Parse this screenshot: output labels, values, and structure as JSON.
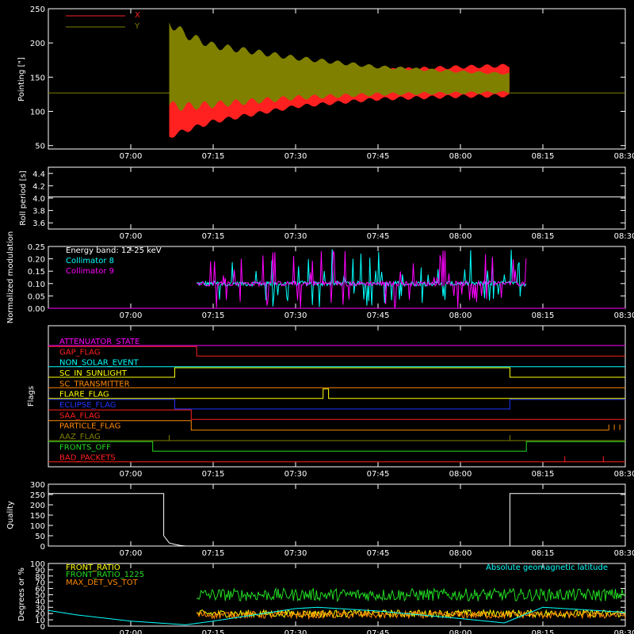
{
  "colors": {
    "background": "#000000",
    "axes": "#ffffff",
    "red": "#ff2020",
    "olive": "#808000",
    "cyan": "#00ffff",
    "magenta": "#ff00ff",
    "white": "#ffffff",
    "green": "#22dd22",
    "orange": "#ff8800",
    "yellow": "#ffff00",
    "blue": "#2233ff",
    "purple": "#aa33ff"
  },
  "chart_data": [
    {
      "id": "pointing",
      "type": "line",
      "ylabel": "Pointing [\"]",
      "xlim": [
        "06:45",
        "08:30"
      ],
      "xticks": [
        "07:00",
        "07:15",
        "07:30",
        "07:45",
        "08:00",
        "08:15",
        "08:30"
      ],
      "ylim": [
        45,
        250
      ],
      "yticks": [
        50,
        100,
        150,
        200,
        250
      ],
      "legend_position": "top-left",
      "baseline": 127,
      "active_window": [
        "07:07",
        "08:09"
      ],
      "series": [
        {
          "name": "X",
          "color": "#ff2020",
          "envelope": {
            "time": [
              "07:07",
              "07:10",
              "07:15",
              "07:30",
              "07:45",
              "08:00",
              "08:09"
            ],
            "min": [
              63,
              72,
              85,
              107,
              118,
              122,
              123
            ],
            "max": [
              120,
              132,
              138,
              150,
              160,
              165,
              167
            ]
          }
        },
        {
          "name": "Y",
          "color": "#808000",
          "envelope": {
            "time": [
              "07:07",
              "07:10",
              "07:15",
              "07:30",
              "07:45",
              "08:00",
              "08:09"
            ],
            "min": [
              108,
              107,
              110,
              120,
              125,
              127,
              128
            ],
            "max": [
              230,
              212,
              196,
              178,
              165,
              158,
              155
            ]
          }
        }
      ]
    },
    {
      "id": "roll",
      "type": "line",
      "ylabel": "Roll period [s]",
      "xlim": [
        "06:45",
        "08:30"
      ],
      "xticks": [
        "07:00",
        "07:15",
        "07:30",
        "07:45",
        "08:00",
        "08:15",
        "08:30"
      ],
      "ylim": [
        3.5,
        4.5
      ],
      "yticks": [
        "3.6",
        "3.8",
        "4.0",
        "4.2",
        "4.4"
      ],
      "series": [
        {
          "name": "",
          "color": "#ffffff",
          "time": [
            "06:45",
            "08:30"
          ],
          "values": [
            4.02,
            4.02
          ]
        }
      ]
    },
    {
      "id": "modulation",
      "type": "line",
      "ylabel": "Normalized modulation",
      "xlim": [
        "06:45",
        "08:30"
      ],
      "xticks": [
        "07:00",
        "07:15",
        "07:30",
        "07:45",
        "08:00",
        "08:15",
        "08:30"
      ],
      "ylim": [
        0,
        0.25
      ],
      "yticks": [
        "0.00",
        "0.05",
        "0.10",
        "0.15",
        "0.20",
        "0.25"
      ],
      "annotation": "Energy band: 12-25 keV",
      "legend_position": "top-left",
      "active_window": [
        "07:12",
        "08:12"
      ],
      "series": [
        {
          "name": "Collimator 8",
          "color": "#00ffff",
          "typical": 0.1
        },
        {
          "name": "Collimator 9",
          "color": "#ff00ff",
          "typical": 0.1
        }
      ]
    },
    {
      "id": "flags",
      "type": "line",
      "ylabel": "Flags",
      "xlim": [
        "06:45",
        "08:30"
      ],
      "xticks": [
        "07:00",
        "07:15",
        "07:30",
        "07:45",
        "08:00",
        "08:15",
        "08:30"
      ],
      "series": [
        {
          "name": "ATTENUATOR_STATE",
          "color": "#ff00ff",
          "segments": [
            [
              "06:45",
              "08:30",
              0
            ]
          ]
        },
        {
          "name": "GAP_FLAG",
          "color": "#ff2020",
          "segments": [
            [
              "06:45",
              "07:12",
              1
            ],
            [
              "07:12",
              "08:30",
              0
            ]
          ]
        },
        {
          "name": "NON_SOLAR_EVENT",
          "color": "#00ffff",
          "segments": [
            [
              "06:45",
              "08:30",
              0
            ]
          ]
        },
        {
          "name": "SC_IN_SUNLIGHT",
          "color": "#ffff00",
          "segments": [
            [
              "06:45",
              "07:08",
              0
            ],
            [
              "07:08",
              "08:09",
              1
            ],
            [
              "08:09",
              "08:30",
              0
            ]
          ]
        },
        {
          "name": "SC_TRANSMITTER",
          "color": "#ff8800",
          "segments": [
            [
              "06:45",
              "08:30",
              0
            ]
          ]
        },
        {
          "name": "FLARE_FLAG",
          "color": "#ffff00",
          "segments": [
            [
              "06:45",
              "07:35",
              0
            ],
            [
              "07:35",
              "07:36",
              1
            ],
            [
              "07:36",
              "08:30",
              0
            ]
          ]
        },
        {
          "name": "ECLIPSE_FLAG",
          "color": "#2233ff",
          "segments": [
            [
              "06:45",
              "07:08",
              1
            ],
            [
              "07:08",
              "08:09",
              0
            ],
            [
              "08:09",
              "08:30",
              1
            ]
          ]
        },
        {
          "name": "SAA_FLAG",
          "color": "#ff2020",
          "segments": [
            [
              "06:45",
              "07:11",
              1
            ],
            [
              "07:11",
              "08:30",
              0
            ]
          ]
        },
        {
          "name": "PARTICLE_FLAG",
          "color": "#ff8800",
          "segments": [
            [
              "06:45",
              "07:11",
              1
            ],
            [
              "07:11",
              "08:27",
              0
            ]
          ],
          "spikes": [
            "08:27",
            "08:28",
            "08:29"
          ]
        },
        {
          "name": "AAZ_FLAG",
          "color": "#808000",
          "segments": [
            [
              "06:45",
              "08:30",
              0
            ]
          ],
          "spikes": [
            "07:07",
            "08:09"
          ]
        },
        {
          "name": "FRONTS_OFF",
          "color": "#22dd22",
          "segments": [
            [
              "06:45",
              "07:04",
              1
            ],
            [
              "07:04",
              "08:12",
              0
            ],
            [
              "08:12",
              "08:30",
              1
            ]
          ]
        },
        {
          "name": "BAD_PACKETS",
          "color": "#ff2020",
          "segments": [
            [
              "06:45",
              "08:30",
              0
            ]
          ],
          "spikes": [
            "08:19",
            "08:26"
          ]
        }
      ]
    },
    {
      "id": "quality",
      "type": "line",
      "ylabel": "Quality",
      "xlim": [
        "06:45",
        "08:30"
      ],
      "xticks": [
        "07:00",
        "07:15",
        "07:30",
        "07:45",
        "08:00",
        "08:15",
        "08:30"
      ],
      "ylim": [
        0,
        300
      ],
      "yticks": [
        0,
        50,
        100,
        150,
        200,
        250,
        300
      ],
      "series": [
        {
          "name": "",
          "color": "#ffffff",
          "time": [
            "06:45",
            "07:06",
            "07:06",
            "07:07",
            "07:08",
            "07:09",
            "07:10",
            "08:09",
            "08:09",
            "08:30"
          ],
          "values": [
            255,
            255,
            50,
            15,
            8,
            3,
            0,
            0,
            255,
            255
          ]
        }
      ]
    },
    {
      "id": "ratios",
      "type": "line",
      "ylabel": "Degrees or %",
      "xlim": [
        "06:45",
        "08:30"
      ],
      "xticks": [
        "07:00",
        "07:15",
        "07:30",
        "07:45",
        "08:00",
        "08:15",
        "08:30"
      ],
      "ylim": [
        0,
        100
      ],
      "yticks": [
        0,
        10,
        20,
        30,
        40,
        50,
        60,
        70,
        80,
        90,
        100
      ],
      "legend_position": "top-left",
      "series": [
        {
          "name": "FRONT_RATIO",
          "color": "#ffff00",
          "typical": 20
        },
        {
          "name": "FRONT_RATIO_1225",
          "color": "#22dd22",
          "typical": 50
        },
        {
          "name": "MAX_DET_VS_TOT",
          "color": "#ff8800",
          "typical": 18
        },
        {
          "name": "Absolute geomagnetic latitude",
          "color": "#00ffff",
          "time": [
            "06:45",
            "06:50",
            "07:00",
            "07:10",
            "07:15",
            "07:30",
            "07:34",
            "07:45",
            "08:00",
            "08:08",
            "08:15",
            "08:30"
          ],
          "values": [
            25,
            18,
            8,
            2,
            8,
            28,
            30,
            24,
            12,
            5,
            30,
            22
          ]
        }
      ]
    }
  ]
}
